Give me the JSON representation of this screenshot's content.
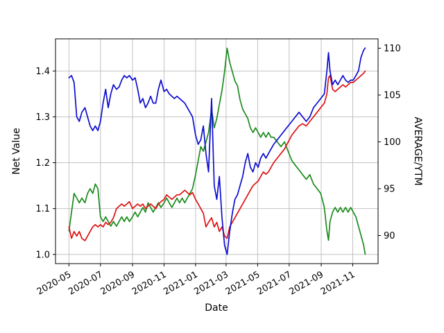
{
  "figure": {
    "background": "#ffffff"
  },
  "chart_data": {
    "type": "line",
    "title": "",
    "xlabel": "Date",
    "ylabel_left": "Net Value",
    "ylabel_right": "AVERAGE/YTM",
    "grid": true,
    "grid_color": "#bbbbbb",
    "x_tick_labels": [
      "2020-05",
      "2020-07",
      "2020-09",
      "2020-11",
      "2021-01",
      "2021-03",
      "2021-05",
      "2021-07",
      "2021-09",
      "2021-11"
    ],
    "y_ticks_left": [
      "1.0",
      "1.1",
      "1.2",
      "1.3",
      "1.4"
    ],
    "y_ticks_right": [
      "90",
      "95",
      "100",
      "105",
      "110"
    ],
    "xlim": [
      "2020-04-05",
      "2021-12-20"
    ],
    "ylim_left": [
      0.98,
      1.47
    ],
    "ylim_right": [
      87,
      111
    ],
    "dates": [
      "2020-05-01",
      "2020-05-06",
      "2020-05-11",
      "2020-05-16",
      "2020-05-21",
      "2020-05-26",
      "2020-06-01",
      "2020-06-06",
      "2020-06-11",
      "2020-06-16",
      "2020-06-21",
      "2020-06-26",
      "2020-07-01",
      "2020-07-06",
      "2020-07-11",
      "2020-07-16",
      "2020-07-21",
      "2020-07-26",
      "2020-08-01",
      "2020-08-06",
      "2020-08-11",
      "2020-08-16",
      "2020-08-21",
      "2020-08-26",
      "2020-09-01",
      "2020-09-06",
      "2020-09-11",
      "2020-09-16",
      "2020-09-21",
      "2020-09-26",
      "2020-10-01",
      "2020-10-06",
      "2020-10-11",
      "2020-10-16",
      "2020-10-21",
      "2020-10-26",
      "2020-11-01",
      "2020-11-06",
      "2020-11-11",
      "2020-11-16",
      "2020-11-21",
      "2020-11-26",
      "2020-12-01",
      "2020-12-06",
      "2020-12-11",
      "2020-12-16",
      "2020-12-21",
      "2020-12-26",
      "2021-01-01",
      "2021-01-06",
      "2021-01-11",
      "2021-01-16",
      "2021-01-21",
      "2021-01-26",
      "2021-02-01",
      "2021-02-06",
      "2021-02-11",
      "2021-02-16",
      "2021-02-21",
      "2021-02-26",
      "2021-03-03",
      "2021-03-08",
      "2021-03-13",
      "2021-03-18",
      "2021-03-23",
      "2021-03-28",
      "2021-04-02",
      "2021-04-07",
      "2021-04-12",
      "2021-04-17",
      "2021-04-22",
      "2021-04-27",
      "2021-05-02",
      "2021-05-07",
      "2021-05-12",
      "2021-05-17",
      "2021-05-22",
      "2021-05-27",
      "2021-06-01",
      "2021-06-08",
      "2021-06-15",
      "2021-06-22",
      "2021-06-29",
      "2021-07-06",
      "2021-07-13",
      "2021-07-20",
      "2021-07-27",
      "2021-08-03",
      "2021-08-10",
      "2021-08-17",
      "2021-08-24",
      "2021-08-31",
      "2021-09-07",
      "2021-09-12",
      "2021-09-15",
      "2021-09-18",
      "2021-09-23",
      "2021-09-28",
      "2021-10-03",
      "2021-10-08",
      "2021-10-13",
      "2021-10-18",
      "2021-10-23",
      "2021-10-28",
      "2021-11-02",
      "2021-11-07",
      "2021-11-12",
      "2021-11-17",
      "2021-11-22",
      "2021-11-25"
    ],
    "series": [
      {
        "name": "net-value-blue",
        "axis": "left",
        "color": "#0b0bd0",
        "values": [
          1.385,
          1.39,
          1.375,
          1.3,
          1.29,
          1.31,
          1.32,
          1.3,
          1.28,
          1.27,
          1.28,
          1.27,
          1.29,
          1.33,
          1.36,
          1.32,
          1.35,
          1.37,
          1.36,
          1.365,
          1.38,
          1.39,
          1.385,
          1.39,
          1.38,
          1.385,
          1.36,
          1.33,
          1.34,
          1.32,
          1.33,
          1.345,
          1.33,
          1.33,
          1.36,
          1.38,
          1.355,
          1.36,
          1.35,
          1.345,
          1.34,
          1.345,
          1.34,
          1.335,
          1.33,
          1.32,
          1.31,
          1.3,
          1.26,
          1.24,
          1.25,
          1.28,
          1.22,
          1.18,
          1.34,
          1.15,
          1.12,
          1.17,
          1.08,
          1.02,
          1.0,
          1.05,
          1.09,
          1.12,
          1.13,
          1.15,
          1.17,
          1.2,
          1.22,
          1.19,
          1.18,
          1.2,
          1.19,
          1.21,
          1.22,
          1.21,
          1.22,
          1.23,
          1.24,
          1.25,
          1.26,
          1.27,
          1.28,
          1.29,
          1.3,
          1.31,
          1.3,
          1.29,
          1.3,
          1.32,
          1.33,
          1.34,
          1.35,
          1.4,
          1.44,
          1.4,
          1.37,
          1.38,
          1.37,
          1.38,
          1.39,
          1.38,
          1.375,
          1.38,
          1.38,
          1.39,
          1.4,
          1.43,
          1.445,
          1.45
        ]
      },
      {
        "name": "net-value-red",
        "axis": "left",
        "color": "#dd1111",
        "values": [
          1.06,
          1.035,
          1.05,
          1.04,
          1.05,
          1.035,
          1.03,
          1.04,
          1.05,
          1.06,
          1.065,
          1.06,
          1.065,
          1.06,
          1.07,
          1.065,
          1.07,
          1.08,
          1.1,
          1.105,
          1.11,
          1.105,
          1.11,
          1.115,
          1.1,
          1.105,
          1.11,
          1.105,
          1.11,
          1.1,
          1.105,
          1.11,
          1.105,
          1.1,
          1.11,
          1.115,
          1.12,
          1.13,
          1.125,
          1.12,
          1.125,
          1.13,
          1.13,
          1.135,
          1.14,
          1.135,
          1.13,
          1.135,
          1.12,
          1.11,
          1.1,
          1.09,
          1.06,
          1.07,
          1.08,
          1.06,
          1.07,
          1.05,
          1.06,
          1.04,
          1.035,
          1.06,
          1.07,
          1.08,
          1.09,
          1.1,
          1.11,
          1.12,
          1.13,
          1.14,
          1.15,
          1.155,
          1.16,
          1.17,
          1.18,
          1.175,
          1.18,
          1.19,
          1.2,
          1.21,
          1.22,
          1.23,
          1.245,
          1.26,
          1.27,
          1.28,
          1.285,
          1.28,
          1.29,
          1.3,
          1.31,
          1.32,
          1.33,
          1.35,
          1.385,
          1.39,
          1.36,
          1.355,
          1.36,
          1.365,
          1.37,
          1.365,
          1.37,
          1.375,
          1.375,
          1.38,
          1.385,
          1.39,
          1.395,
          1.4
        ]
      },
      {
        "name": "average-ytm-green",
        "axis": "right",
        "color": "#1a8a1a",
        "values": [
          90.5,
          92.5,
          94.5,
          94.0,
          93.5,
          94.0,
          93.5,
          94.5,
          95.0,
          94.5,
          95.5,
          95.0,
          92.0,
          91.5,
          92.0,
          91.5,
          91.0,
          91.5,
          91.0,
          91.5,
          92.0,
          91.5,
          92.0,
          91.5,
          92.0,
          92.5,
          92.0,
          92.5,
          93.0,
          92.5,
          93.5,
          93.0,
          92.5,
          93.0,
          93.5,
          93.0,
          93.5,
          94.0,
          93.5,
          93.0,
          93.5,
          94.0,
          93.5,
          94.0,
          93.5,
          94.0,
          94.5,
          95.0,
          96.5,
          98.0,
          99.5,
          99.0,
          100.0,
          101.0,
          103.5,
          101.5,
          102.5,
          104.0,
          105.5,
          107.5,
          110.0,
          108.5,
          107.5,
          106.5,
          106.0,
          104.5,
          103.5,
          103.0,
          102.5,
          101.5,
          101.0,
          101.5,
          101.0,
          100.5,
          101.0,
          100.5,
          101.0,
          100.5,
          100.5,
          100.0,
          99.5,
          100.0,
          99.0,
          98.0,
          97.5,
          97.0,
          96.5,
          96.0,
          96.5,
          95.5,
          95.0,
          94.5,
          93.0,
          90.5,
          89.5,
          91.5,
          92.5,
          93.0,
          92.5,
          93.0,
          92.5,
          93.0,
          92.5,
          93.0,
          92.5,
          92.0,
          91.0,
          90.0,
          89.0,
          88.0
        ]
      }
    ]
  }
}
